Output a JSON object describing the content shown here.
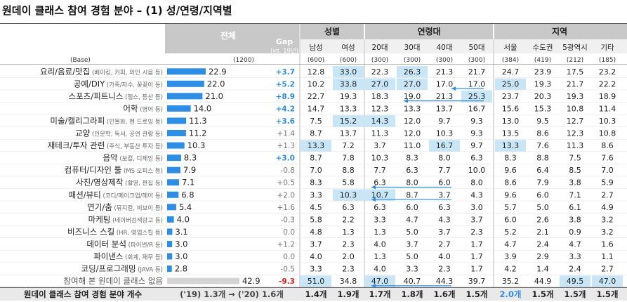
{
  "title": "원데이 클래스 참여 경험 분야 – (1) 성/연령/지역별",
  "header": {
    "total": "전체",
    "gap": "Gap",
    "gap_sub": "(vs. 19년)",
    "groups": [
      "성별",
      "연령대",
      "지역"
    ],
    "columns": [
      "남성",
      "여성",
      "20대",
      "30대",
      "40대",
      "50대",
      "서울",
      "수도권",
      "5광역시",
      "기타"
    ]
  },
  "base": {
    "label": "(Base)",
    "total": "(1200)",
    "columns": [
      "(600)",
      "(600)",
      "(300)",
      "(300)",
      "(300)",
      "(300)",
      "(384)",
      "(419)",
      "(212)",
      "(185)"
    ]
  },
  "chart_data": {
    "type": "table",
    "rows": [
      {
        "main": "요리/음료/맛집",
        "sub": "(베이킹, 커피, 와인 시음 등)",
        "total": 22.9,
        "gap": "+3.7",
        "values": [
          "12.8",
          "33.0",
          "22.3",
          "26.3",
          "21.3",
          "21.7",
          "24.7",
          "23.9",
          "17.5",
          "23.2"
        ]
      },
      {
        "main": "공예/DIY",
        "sub": "(가죽/자수, 꽃꽂이 등)",
        "total": 22.0,
        "gap": "+5.2",
        "values": [
          "10.2",
          "33.8",
          "27.0",
          "27.0",
          "17.0",
          "17.0",
          "25.0",
          "19.3",
          "21.7",
          "22.2"
        ]
      },
      {
        "main": "스포츠/피트니스",
        "sub": "(헬스, 등산 등)",
        "total": 21.0,
        "gap": "+8.9",
        "values": [
          "22.7",
          "19.3",
          "18.3",
          "19.0",
          "21.3",
          "25.3",
          "23.7",
          "20.3",
          "19.3",
          "18.9"
        ]
      },
      {
        "main": "어학",
        "sub": "(영어 등)",
        "total": 14.0,
        "gap": "+4.2",
        "values": [
          "14.7",
          "13.3",
          "12.3",
          "13.3",
          "13.7",
          "16.7",
          "15.6",
          "15.3",
          "10.8",
          "11.4"
        ]
      },
      {
        "main": "미술/캘리그라피",
        "sub": "(인물화, 펜 드로잉 등)",
        "total": 11.3,
        "gap": "+3.6",
        "values": [
          "7.5",
          "15.2",
          "14.3",
          "12.0",
          "9.7",
          "9.3",
          "13.0",
          "9.5",
          "12.7",
          "10.3"
        ]
      },
      {
        "main": "교양",
        "sub": "(인문학, 독서, 공연 관람 등)",
        "total": 11.2,
        "gap": "+1.4",
        "values": [
          "8.7",
          "13.7",
          "11.3",
          "12.0",
          "10.3",
          "9.3",
          "13.5",
          "8.6",
          "12.3",
          "10.8"
        ]
      },
      {
        "main": "재테크/투자 관련",
        "sub": "(주식, 부동산 투자 등)",
        "total": 10.3,
        "gap": "+1.3",
        "values": [
          "13.3",
          "7.2",
          "3.7",
          "11.0",
          "16.7",
          "9.7",
          "13.3",
          "7.6",
          "11.3",
          "8.6"
        ]
      },
      {
        "main": "음악",
        "sub": "(보컬, 디제잉 등)",
        "total": 8.3,
        "gap": "+3.0",
        "values": [
          "8.7",
          "7.8",
          "10.3",
          "8.3",
          "8.0",
          "6.3",
          "8.3",
          "8.8",
          "7.5",
          "7.6"
        ]
      },
      {
        "main": "컴퓨터/디자인 툴",
        "sub": "(MS 오피스 등)",
        "total": 7.9,
        "gap": "-0.8",
        "values": [
          "7.0",
          "8.8",
          "7.7",
          "6.3",
          "7.7",
          "10.0",
          "9.6",
          "6.4",
          "8.5",
          "7.0"
        ]
      },
      {
        "main": "사진/영상제작",
        "sub": "(촬영, 편집 등)",
        "total": 7.1,
        "gap": "+0.5",
        "values": [
          "8.3",
          "5.8",
          "6.3",
          "8.0",
          "6.0",
          "8.0",
          "8.6",
          "7.9",
          "3.8",
          "5.9"
        ]
      },
      {
        "main": "패션/뷰티",
        "sub": "(코디/메이크업/헤어 등)",
        "total": 6.8,
        "gap": "+2.0",
        "values": [
          "3.3",
          "10.3",
          "10.7",
          "8.7",
          "3.7",
          "4.3",
          "9.6",
          "6.0",
          "7.1",
          "2.7"
        ]
      },
      {
        "main": "연기/춤",
        "sub": "(뮤지컬, 비보이 등)",
        "total": 5.4,
        "gap": "+1.6",
        "values": [
          "4.5",
          "6.3",
          "6.3",
          "6.0",
          "6.3",
          "3.0",
          "5.7",
          "5.0",
          "6.1",
          "4.9"
        ]
      },
      {
        "main": "마케팅",
        "sub": "(네이버검색광고 등)",
        "total": 4.0,
        "gap": "-0.3",
        "values": [
          "5.8",
          "2.2",
          "3.3",
          "4.7",
          "4.3",
          "3.7",
          "6.0",
          "2.6",
          "3.8",
          "3.2"
        ]
      },
      {
        "main": "비즈니스 스킬",
        "sub": "(HR, 영업스킬 등)",
        "total": 3.1,
        "gap": "0.0",
        "values": [
          "4.8",
          "1.3",
          "1.3",
          "5.0",
          "3.7",
          "2.3",
          "5.2",
          "2.1",
          "0.9",
          "3.2"
        ]
      },
      {
        "main": "데이터 분석",
        "sub": "(파이썬/R 등)",
        "total": 3.0,
        "gap": "+1.2",
        "values": [
          "3.7",
          "2.3",
          "4.0",
          "3.7",
          "2.7",
          "1.7",
          "4.7",
          "2.4",
          "4.7",
          "1.6"
        ]
      },
      {
        "main": "파이낸스",
        "sub": "(회계, 재무 등)",
        "total": 3.0,
        "gap": "0.0",
        "values": [
          "4.0",
          "2.0",
          "1.3",
          "5.0",
          "4.0",
          "1.7",
          "3.9",
          "2.9",
          "3.3",
          "1.1"
        ]
      },
      {
        "main": "코딩/프로그래밍",
        "sub": "(JAVA 등)",
        "total": 2.8,
        "gap": "-0.5",
        "values": [
          "3.3",
          "2.3",
          "4.0",
          "3.3",
          "2.3",
          "1.7",
          "4.2",
          "1.4",
          "2.4",
          "2.7"
        ]
      },
      {
        "main": "참여해 본 원데이 클래스 없음",
        "sub": "",
        "total": 42.9,
        "gap": "-9.3",
        "values": [
          "51.0",
          "34.8",
          "47.0",
          "40.7",
          "44.3",
          "39.7",
          "35.2",
          "44.9",
          "49.5",
          "47.0"
        ]
      }
    ],
    "footer": {
      "label": "원데이 클래스 참여 경험 분야 개수",
      "total_text": "('19) 1.3개 → ('20) 1.6개",
      "values": [
        "1.4개",
        "1.9개",
        "1.7개",
        "1.8개",
        "1.6개",
        "1.5개",
        "2.0개",
        "1.5개",
        "1.5개",
        "1.5개"
      ]
    },
    "highlights": [
      [
        0,
        1
      ],
      [
        0,
        3
      ],
      [
        1,
        1
      ],
      [
        1,
        2
      ],
      [
        1,
        3
      ],
      [
        1,
        6
      ],
      [
        2,
        5
      ],
      [
        4,
        1
      ],
      [
        4,
        2
      ],
      [
        6,
        0
      ],
      [
        6,
        4
      ],
      [
        6,
        6
      ],
      [
        10,
        1
      ],
      [
        10,
        2
      ],
      [
        17,
        0
      ],
      [
        17,
        2
      ],
      [
        17,
        8
      ],
      [
        17,
        9
      ]
    ],
    "colors": {
      "bar": "#2e8ee6",
      "bar_none": "#d4d4d4",
      "gap_pos": "#2e8ee6",
      "gap_neg": "#e02020",
      "highlight": "#c9e5f8",
      "header_bg": "#c8c8c8",
      "sub_header_bg": "#f0f0f0",
      "footer_bg": "#e9e9e9",
      "arrow": "#2e8ee6"
    }
  }
}
